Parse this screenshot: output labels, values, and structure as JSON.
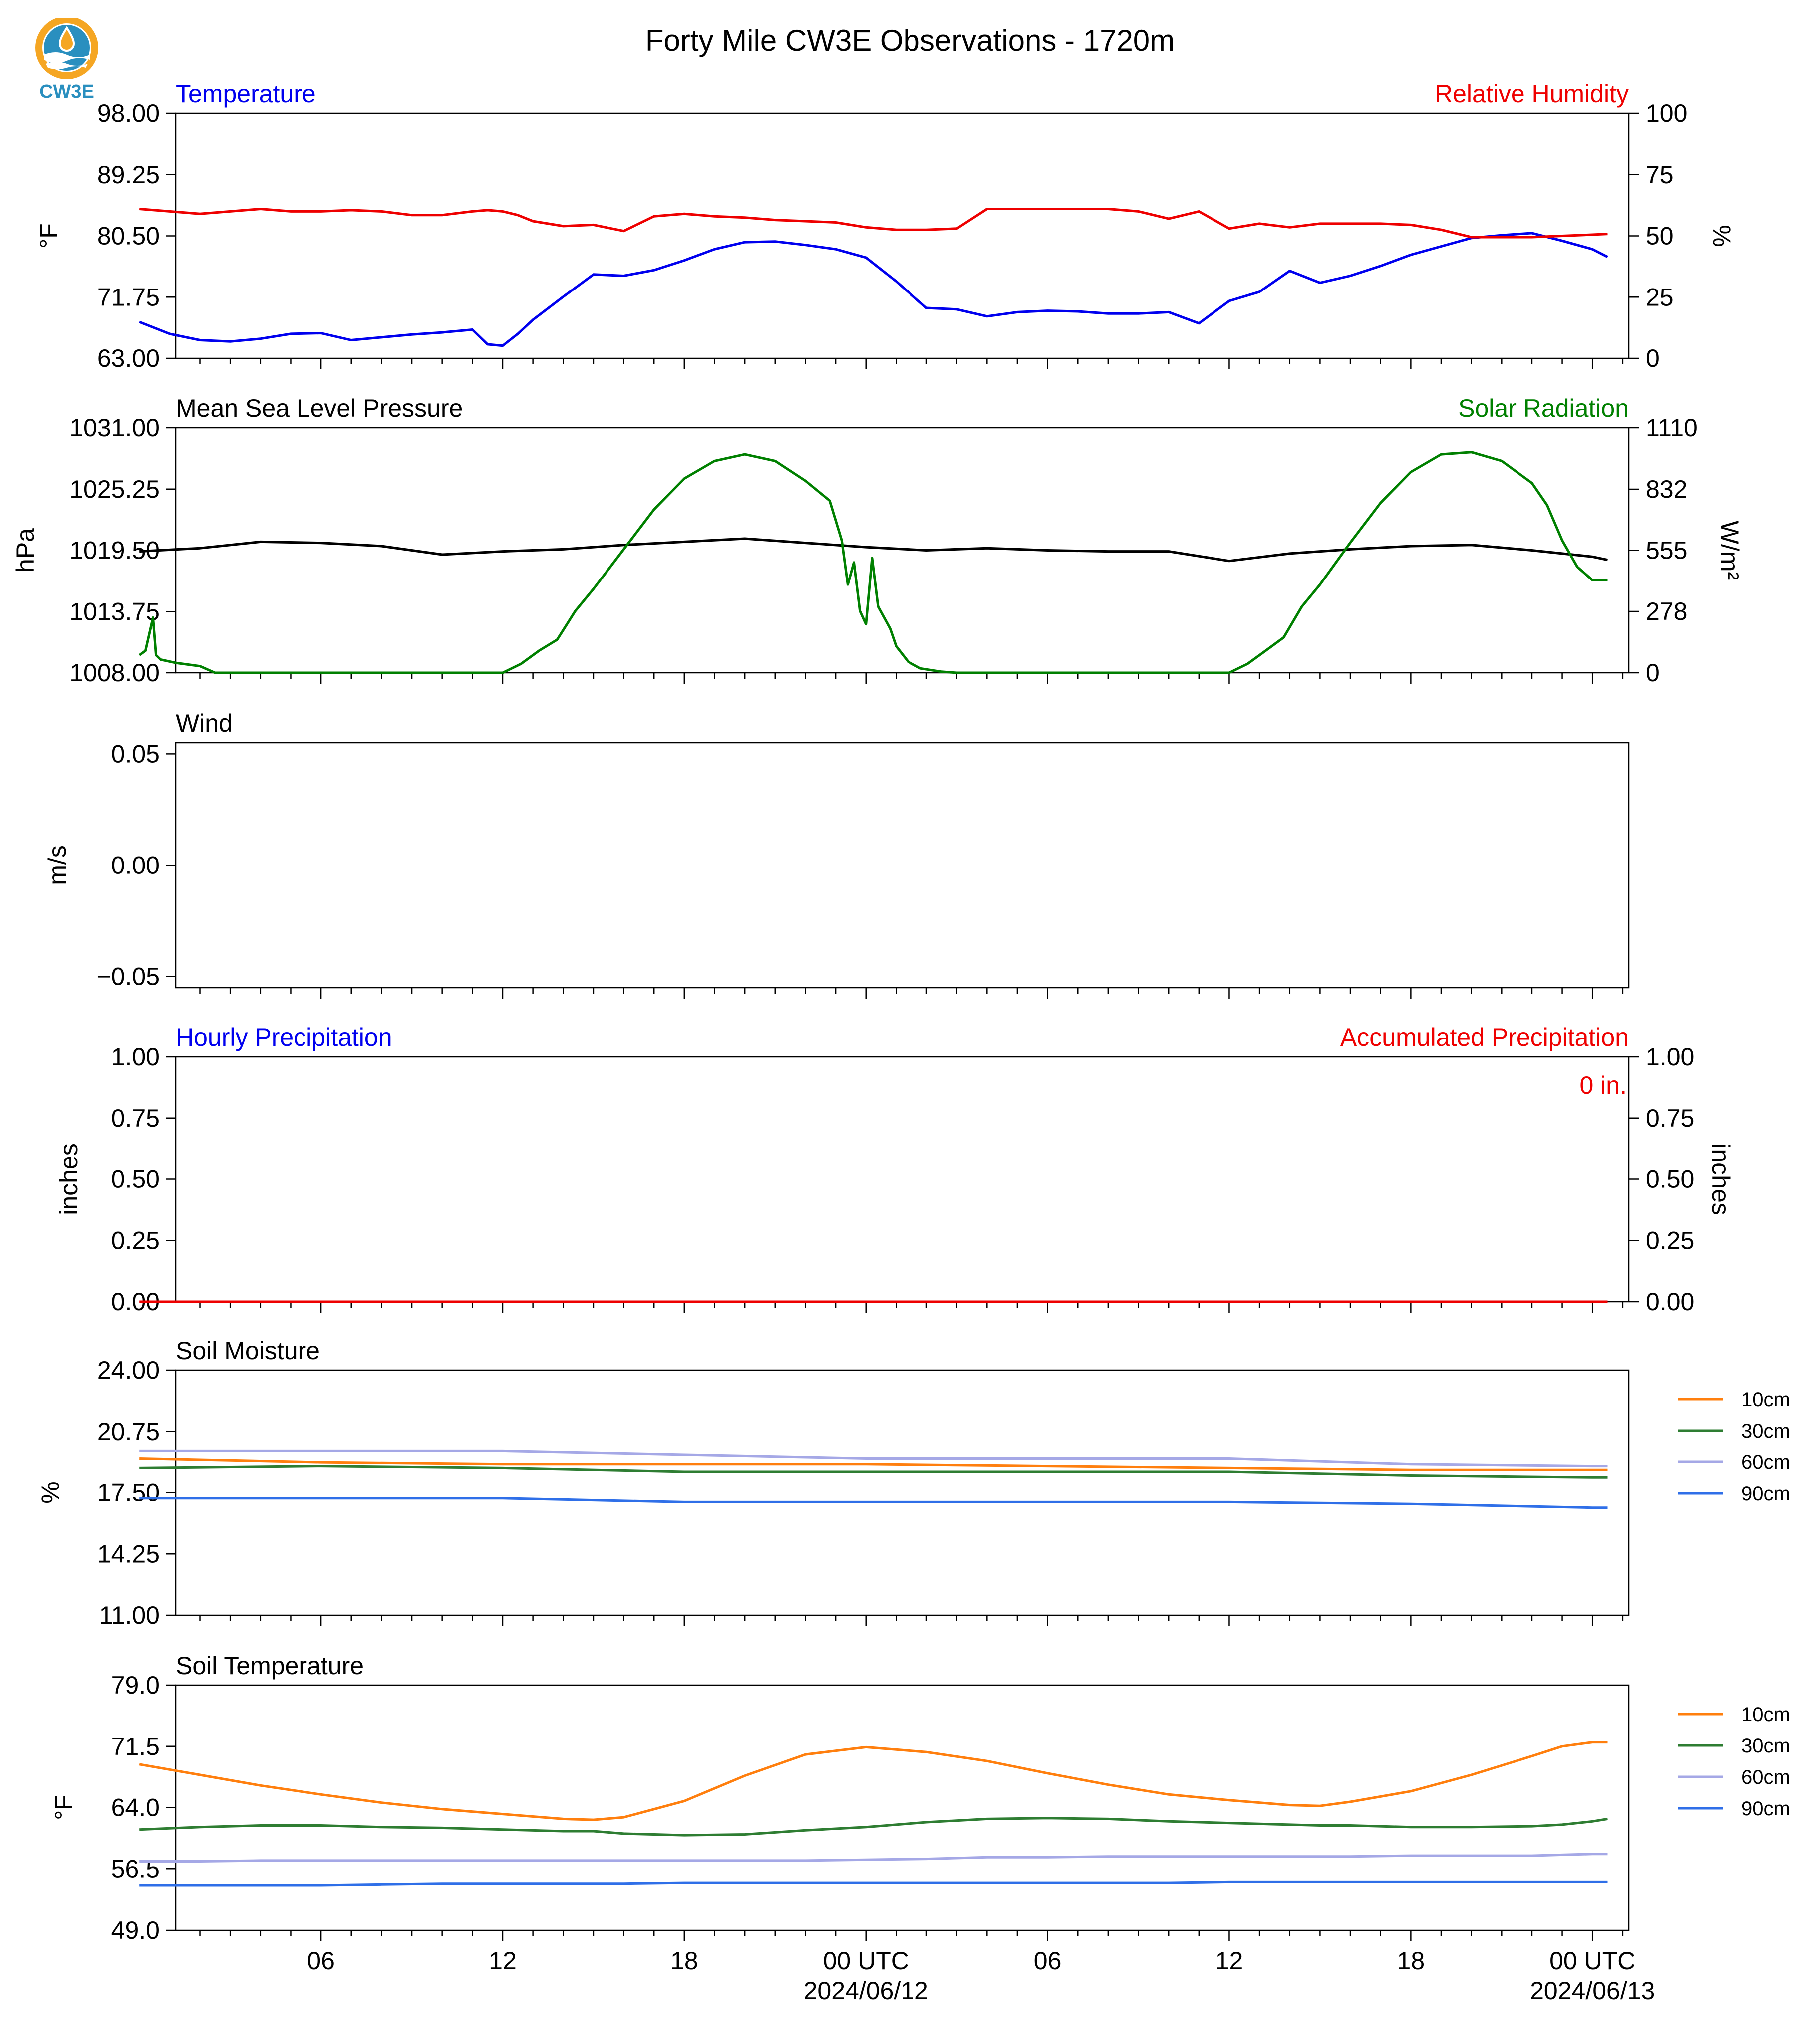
{
  "title": "Forty Mile CW3E Observations - 1720m",
  "logo_text": "CW3E",
  "colors": {
    "blue": "#0000ee",
    "red": "#ee0000",
    "green": "#008000",
    "black": "#000000",
    "s10": "#ff7f0e",
    "s30": "#2e7d32",
    "s60": "#a5a8e6",
    "s90": "#2f6fe8",
    "logo_orange": "#f5a623",
    "logo_teal": "#2a8fbf"
  },
  "x_axis": {
    "tick_labels": [
      "06",
      "12",
      "18",
      "00 UTC",
      "06",
      "12",
      "18",
      "00 UTC"
    ],
    "date_labels": [
      "2024/06/12",
      "2024/06/13"
    ]
  },
  "chart_data": [
    {
      "type": "line",
      "title_left": "Temperature",
      "title_right": "Relative Humidity",
      "ylabel": "°F",
      "ylabel_right": "%",
      "ylim": [
        63.0,
        98.0
      ],
      "ylim_right": [
        0,
        100
      ],
      "yticks": [
        "63.00",
        "71.75",
        "80.50",
        "89.25",
        "98.00"
      ],
      "yticks_right": [
        "0",
        "25",
        "50",
        "75",
        "100"
      ],
      "hours": [
        0,
        1,
        2,
        3,
        4,
        5,
        6,
        7,
        8,
        9,
        10,
        11,
        11.5,
        12,
        12.5,
        13,
        14,
        15,
        16,
        17,
        18,
        19,
        20,
        21,
        22,
        23,
        24,
        25,
        26,
        27,
        28,
        29,
        30,
        31,
        32,
        33,
        34,
        35,
        36,
        37,
        38,
        39,
        40,
        41,
        42,
        43,
        44,
        45,
        46,
        47,
        48,
        48.5
      ],
      "series": [
        {
          "name": "Temperature",
          "axis": "left",
          "color_key": "blue",
          "values": [
            68.2,
            66.5,
            65.6,
            65.4,
            65.8,
            66.5,
            66.6,
            65.6,
            66.0,
            66.4,
            66.7,
            67.1,
            65.0,
            64.8,
            66.5,
            68.5,
            71.8,
            75.0,
            74.8,
            75.6,
            77.0,
            78.6,
            79.6,
            79.7,
            79.2,
            78.6,
            77.4,
            74.0,
            70.2,
            70.0,
            69.0,
            69.6,
            69.8,
            69.7,
            69.4,
            69.4,
            69.6,
            68.0,
            71.2,
            72.5,
            75.5,
            73.8,
            74.8,
            76.2,
            77.8,
            79.0,
            80.2,
            80.6,
            80.9,
            79.8,
            78.6,
            77.5
          ]
        },
        {
          "name": "Relative Humidity",
          "axis": "right",
          "color_key": "red",
          "values": [
            61,
            60,
            59,
            60,
            61,
            60,
            60,
            60.5,
            60,
            58.5,
            58.5,
            60,
            60.5,
            60,
            58.5,
            56,
            54,
            54.5,
            52,
            58,
            59,
            58,
            57.5,
            56.5,
            56,
            55.5,
            53.5,
            52.5,
            52.5,
            53,
            61,
            61,
            61,
            61,
            61,
            60,
            57,
            60,
            53,
            55,
            53.5,
            55,
            55,
            55,
            54.5,
            52.5,
            49.5,
            49.5,
            49.5,
            50,
            50.5,
            50.8
          ]
        }
      ]
    },
    {
      "type": "line",
      "title_left": "Mean Sea Level Pressure",
      "title_right": "Solar Radiation",
      "ylabel": "hPa",
      "ylabel_right": "W/m²",
      "ylim": [
        1008.0,
        1031.0
      ],
      "ylim_right": [
        0,
        1110
      ],
      "yticks": [
        "1008.00",
        "1013.75",
        "1019.50",
        "1025.25",
        "1031.00"
      ],
      "yticks_right": [
        "0",
        "278",
        "555",
        "832",
        "1110"
      ],
      "series": [
        {
          "name": "Mean Sea Level Pressure",
          "axis": "left",
          "color_key": "black",
          "hours": [
            0,
            2,
            4,
            6,
            8,
            10,
            12,
            14,
            16,
            18,
            20,
            22,
            24,
            26,
            28,
            30,
            32,
            34,
            36,
            38,
            40,
            42,
            44,
            46,
            48,
            48.5
          ],
          "values": [
            1019.4,
            1019.7,
            1020.3,
            1020.2,
            1019.9,
            1019.1,
            1019.4,
            1019.6,
            1020.0,
            1020.3,
            1020.6,
            1020.2,
            1019.8,
            1019.5,
            1019.7,
            1019.5,
            1019.4,
            1019.4,
            1018.5,
            1019.2,
            1019.6,
            1019.9,
            1020.0,
            1019.5,
            1018.9,
            1018.6
          ]
        },
        {
          "name": "Solar Radiation",
          "axis": "right",
          "color_key": "green",
          "hours": [
            0,
            0.2,
            0.45,
            0.55,
            0.7,
            1.2,
            2.0,
            2.5,
            12.0,
            12.6,
            13.2,
            13.8,
            14.4,
            15.0,
            16.0,
            17.0,
            18.0,
            19.0,
            20.0,
            21.0,
            22.0,
            22.8,
            23.2,
            23.4,
            23.6,
            23.8,
            24.0,
            24.2,
            24.4,
            24.8,
            25.0,
            25.4,
            25.8,
            26.5,
            27.0,
            36.0,
            36.6,
            37.2,
            37.8,
            38.4,
            39.0,
            40.0,
            41.0,
            42.0,
            43.0,
            44.0,
            45.0,
            46.0,
            46.5,
            47.0,
            47.5,
            48.0,
            48.5
          ],
          "values": [
            80,
            100,
            250,
            80,
            60,
            45,
            30,
            0,
            0,
            40,
            100,
            150,
            280,
            380,
            560,
            740,
            880,
            960,
            990,
            960,
            870,
            780,
            600,
            400,
            500,
            280,
            220,
            520,
            300,
            200,
            120,
            50,
            20,
            5,
            0,
            0,
            40,
            100,
            160,
            300,
            400,
            590,
            770,
            910,
            990,
            1000,
            960,
            860,
            760,
            600,
            480,
            420,
            420
          ]
        }
      ]
    },
    {
      "type": "line",
      "title_left": "Wind",
      "ylabel": "m/s",
      "ylim": [
        -0.055,
        0.055
      ],
      "yticks": [
        "−0.05",
        "0.00",
        "0.05"
      ],
      "yticks_values": [
        -0.05,
        0.0,
        0.05
      ],
      "series": []
    },
    {
      "type": "line",
      "title_left": "Hourly Precipitation",
      "title_right": "Accumulated Precipitation",
      "annotation": "0 in.",
      "ylabel": "inches",
      "ylabel_right": "inches",
      "ylim": [
        0,
        1.0
      ],
      "ylim_right": [
        0,
        1.0
      ],
      "yticks": [
        "0.00",
        "0.25",
        "0.50",
        "0.75",
        "1.00"
      ],
      "yticks_right": [
        "0.00",
        "0.25",
        "0.50",
        "0.75",
        "1.00"
      ],
      "series": [
        {
          "name": "Accumulated Precipitation",
          "axis": "right",
          "color_key": "red",
          "hours": [
            0,
            48.5
          ],
          "values": [
            0,
            0
          ]
        }
      ]
    },
    {
      "type": "line",
      "title_left": "Soil Moisture",
      "ylabel": "%",
      "ylim": [
        11.0,
        24.0
      ],
      "yticks": [
        "11.00",
        "14.25",
        "17.50",
        "20.75",
        "24.00"
      ],
      "legend": [
        "10cm",
        "30cm",
        "60cm",
        "90cm"
      ],
      "hours": [
        0,
        6,
        12,
        18,
        24,
        30,
        36,
        42,
        48,
        48.5
      ],
      "series": [
        {
          "name": "10cm",
          "color_key": "s10",
          "values": [
            19.3,
            19.1,
            19.0,
            19.0,
            19.0,
            18.9,
            18.8,
            18.7,
            18.7,
            18.7
          ]
        },
        {
          "name": "30cm",
          "color_key": "s30",
          "values": [
            18.8,
            18.9,
            18.8,
            18.6,
            18.6,
            18.6,
            18.6,
            18.4,
            18.3,
            18.3
          ]
        },
        {
          "name": "60cm",
          "color_key": "s60",
          "values": [
            19.7,
            19.7,
            19.7,
            19.5,
            19.3,
            19.3,
            19.3,
            19.0,
            18.9,
            18.9
          ]
        },
        {
          "name": "90cm",
          "color_key": "s90",
          "values": [
            17.2,
            17.2,
            17.2,
            17.0,
            17.0,
            17.0,
            17.0,
            16.9,
            16.7,
            16.7
          ]
        }
      ]
    },
    {
      "type": "line",
      "title_left": "Soil Temperature",
      "ylabel": "°F",
      "ylim": [
        49.0,
        79.0
      ],
      "yticks": [
        "49.0",
        "56.5",
        "64.0",
        "71.5",
        "79.0"
      ],
      "legend": [
        "10cm",
        "30cm",
        "60cm",
        "90cm"
      ],
      "hours": [
        0,
        2,
        4,
        6,
        8,
        10,
        12,
        14,
        15,
        16,
        18,
        20,
        22,
        24,
        26,
        28,
        30,
        32,
        34,
        36,
        38,
        39,
        40,
        42,
        44,
        46,
        47,
        48,
        48.5
      ],
      "series": [
        {
          "name": "10cm",
          "color_key": "s10",
          "values": [
            69.3,
            68.0,
            66.7,
            65.6,
            64.6,
            63.8,
            63.2,
            62.6,
            62.5,
            62.8,
            64.8,
            67.9,
            70.5,
            71.4,
            70.8,
            69.7,
            68.2,
            66.8,
            65.6,
            64.9,
            64.3,
            64.2,
            64.7,
            66.0,
            68.0,
            70.3,
            71.5,
            72.0,
            72.0
          ]
        },
        {
          "name": "30cm",
          "color_key": "s30",
          "values": [
            61.3,
            61.6,
            61.8,
            61.8,
            61.6,
            61.5,
            61.3,
            61.1,
            61.1,
            60.8,
            60.6,
            60.7,
            61.2,
            61.6,
            62.2,
            62.6,
            62.7,
            62.6,
            62.3,
            62.1,
            61.9,
            61.8,
            61.8,
            61.6,
            61.6,
            61.7,
            61.9,
            62.3,
            62.6
          ]
        },
        {
          "name": "60cm",
          "color_key": "s60",
          "values": [
            57.4,
            57.4,
            57.5,
            57.5,
            57.5,
            57.5,
            57.5,
            57.5,
            57.5,
            57.5,
            57.5,
            57.5,
            57.5,
            57.6,
            57.7,
            57.9,
            57.9,
            58.0,
            58.0,
            58.0,
            58.0,
            58.0,
            58.0,
            58.1,
            58.1,
            58.1,
            58.2,
            58.3,
            58.3
          ]
        },
        {
          "name": "90cm",
          "color_key": "s90",
          "values": [
            54.5,
            54.5,
            54.5,
            54.5,
            54.6,
            54.7,
            54.7,
            54.7,
            54.7,
            54.7,
            54.8,
            54.8,
            54.8,
            54.8,
            54.8,
            54.8,
            54.8,
            54.8,
            54.8,
            54.9,
            54.9,
            54.9,
            54.9,
            54.9,
            54.9,
            54.9,
            54.9,
            54.9,
            54.9
          ]
        }
      ]
    }
  ]
}
